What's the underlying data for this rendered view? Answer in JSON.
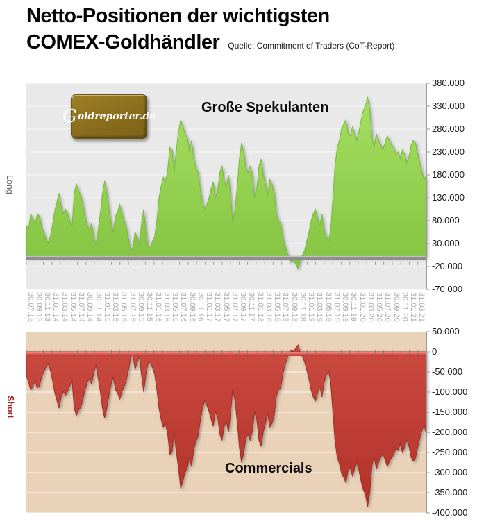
{
  "title": {
    "line1": "Netto-Positionen der wichtigsten",
    "line2": "COMEX-Goldhändler",
    "source": "Quelle: Commitment of Traders (CoT-Report)"
  },
  "logo": {
    "initial": "G",
    "rest": "oldreporter.de"
  },
  "colors": {
    "speculators_green": "#92D050",
    "commercials_red": "#C1372E",
    "top_plot_background": "#E9E9E9",
    "bottom_plot_background": "#E9D2B8",
    "short_label_red": "#A8201F",
    "logo_gold": "#8A6E1D"
  },
  "chart_data": [
    {
      "type": "area",
      "title": "Große Spekulanten",
      "side_label": "Long",
      "unit": "thousand contracts (axis labels show full contract counts, German number format)",
      "ylim": [
        -70,
        380
      ],
      "ytick_values": [
        380,
        330,
        280,
        230,
        180,
        130,
        80,
        30,
        -20,
        -70
      ],
      "ytick_labels": [
        "380.000",
        "330.000",
        "280.000",
        "230.000",
        "180.000",
        "130.000",
        "80.000",
        "30.000",
        "-20.000",
        "-70.000"
      ],
      "grid": "on",
      "legend": "none",
      "categories": [
        "30.07.13",
        "30.09.13",
        "30.11.13",
        "31.01.14",
        "31.03.14",
        "31.05.14",
        "31.07.14",
        "30.09.14",
        "30.11.14",
        "31.01.15",
        "31.03.15",
        "31.05.15",
        "31.07.15",
        "30.09.15",
        "30.11.15",
        "31.01.16",
        "31.03.16",
        "31.05.16",
        "31.07.16",
        "30.09.16",
        "30.11.16",
        "31.01.17",
        "31.03.17",
        "31.05.17",
        "31.07.17",
        "30.09.17",
        "30.11.17",
        "31.01.18",
        "31.03.18",
        "31.05.18",
        "31.07.18",
        "30.09.18",
        "30.11.18",
        "31.01.19",
        "31.03.19",
        "31.05.19",
        "31.07.19",
        "30.09.19",
        "30.11.19",
        "31.01.20",
        "31.03.20",
        "31.05.20",
        "31.07.20",
        "30.09.20",
        "30.11.20",
        "31.01.21",
        "31.03.21"
      ],
      "sampling": "semi-monthly estimates, Jul 2013 - Mar 2021",
      "values": [
        70,
        60,
        95,
        85,
        70,
        95,
        90,
        65,
        55,
        40,
        32,
        45,
        70,
        100,
        120,
        140,
        110,
        95,
        105,
        95,
        80,
        65,
        140,
        160,
        145,
        135,
        115,
        90,
        70,
        60,
        75,
        45,
        25,
        60,
        95,
        140,
        167,
        140,
        105,
        75,
        55,
        90,
        100,
        115,
        95,
        80,
        65,
        40,
        15,
        20,
        55,
        45,
        25,
        75,
        105,
        55,
        25,
        20,
        35,
        45,
        80,
        130,
        155,
        175,
        165,
        190,
        240,
        235,
        185,
        235,
        275,
        300,
        285,
        270,
        260,
        230,
        255,
        215,
        195,
        185,
        150,
        120,
        105,
        115,
        130,
        150,
        165,
        130,
        145,
        185,
        200,
        165,
        155,
        180,
        130,
        75,
        105,
        155,
        215,
        250,
        230,
        195,
        185,
        200,
        175,
        130,
        150,
        200,
        215,
        180,
        160,
        135,
        170,
        160,
        140,
        95,
        80,
        75,
        45,
        25,
        10,
        -5,
        -10,
        -5,
        -15,
        -25,
        -5,
        5,
        15,
        35,
        55,
        80,
        95,
        105,
        85,
        70,
        95,
        60,
        45,
        35,
        60,
        130,
        200,
        240,
        255,
        280,
        290,
        300,
        270,
        265,
        285,
        270,
        255,
        275,
        300,
        320,
        330,
        350,
        320,
        260,
        240,
        270,
        255,
        245,
        235,
        250,
        265,
        255,
        245,
        240,
        225,
        230,
        215,
        235,
        225,
        205,
        220,
        245,
        255,
        250,
        225,
        205,
        185,
        170,
        178
      ]
    },
    {
      "type": "area",
      "title": "Commercials",
      "side_label": "Short",
      "unit": "thousand contracts (axis labels show full contract counts, German number format)",
      "ylim": [
        -400,
        50
      ],
      "ytick_values": [
        50,
        0,
        -50,
        -100,
        -150,
        -200,
        -250,
        -300,
        -350,
        -400
      ],
      "ytick_labels": [
        "50.000",
        "0",
        "-50.000",
        "-100.000",
        "-150.000",
        "-200.000",
        "-250.000",
        "-300.000",
        "-350.000",
        "-400.000"
      ],
      "grid": "on",
      "legend": "none",
      "categories": [
        "30.07.13",
        "30.09.13",
        "30.11.13",
        "31.01.14",
        "31.03.14",
        "31.05.14",
        "31.07.14",
        "30.09.14",
        "30.11.14",
        "31.01.15",
        "31.03.15",
        "31.05.15",
        "31.07.15",
        "30.09.15",
        "30.11.15",
        "31.01.16",
        "31.03.16",
        "31.05.16",
        "31.07.16",
        "30.09.16",
        "30.11.16",
        "31.01.17",
        "31.03.17",
        "31.05.17",
        "31.07.17",
        "30.09.17",
        "30.11.17",
        "31.01.18",
        "31.03.18",
        "31.05.18",
        "31.07.18",
        "30.09.18",
        "30.11.18",
        "31.01.19",
        "31.03.19",
        "31.05.19",
        "31.07.19",
        "30.09.19",
        "30.11.19",
        "31.01.20",
        "31.03.20",
        "31.05.20",
        "31.07.20",
        "30.09.20",
        "30.11.20",
        "31.01.21",
        "31.03.21"
      ],
      "sampling": "semi-monthly estimates, Jul 2013 - Mar 2021",
      "values": [
        -60,
        -75,
        -95,
        -85,
        -70,
        -90,
        -85,
        -62,
        -50,
        -38,
        -30,
        -45,
        -70,
        -100,
        -120,
        -140,
        -112,
        -98,
        -108,
        -98,
        -84,
        -70,
        -140,
        -158,
        -145,
        -137,
        -118,
        -95,
        -75,
        -66,
        -80,
        -52,
        -32,
        -65,
        -98,
        -140,
        -165,
        -140,
        -108,
        -80,
        -62,
        -95,
        -103,
        -117,
        -98,
        -85,
        -70,
        -45,
        -12,
        -6,
        -45,
        -25,
        -10,
        -60,
        -100,
        -55,
        -28,
        -25,
        -40,
        -55,
        -92,
        -140,
        -168,
        -188,
        -178,
        -205,
        -255,
        -250,
        -200,
        -250,
        -290,
        -340,
        -320,
        -300,
        -290,
        -262,
        -285,
        -243,
        -222,
        -210,
        -172,
        -140,
        -122,
        -132,
        -148,
        -168,
        -185,
        -148,
        -163,
        -205,
        -220,
        -185,
        -172,
        -200,
        -148,
        -90,
        -122,
        -175,
        -238,
        -275,
        -252,
        -215,
        -205,
        -220,
        -195,
        -148,
        -168,
        -220,
        -235,
        -198,
        -178,
        -152,
        -188,
        -178,
        -158,
        -110,
        -95,
        -88,
        -55,
        -32,
        -15,
        0,
        5,
        0,
        10,
        17,
        -2,
        -12,
        -25,
        -45,
        -68,
        -95,
        -112,
        -122,
        -102,
        -85,
        -112,
        -75,
        -58,
        -48,
        -75,
        -150,
        -222,
        -262,
        -278,
        -302,
        -312,
        -325,
        -295,
        -288,
        -308,
        -292,
        -275,
        -295,
        -322,
        -342,
        -355,
        -385,
        -350,
        -282,
        -260,
        -292,
        -275,
        -262,
        -252,
        -268,
        -285,
        -272,
        -262,
        -255,
        -240,
        -245,
        -228,
        -250,
        -238,
        -218,
        -235,
        -262,
        -272,
        -265,
        -238,
        -215,
        -195,
        -182,
        -205
      ]
    }
  ]
}
